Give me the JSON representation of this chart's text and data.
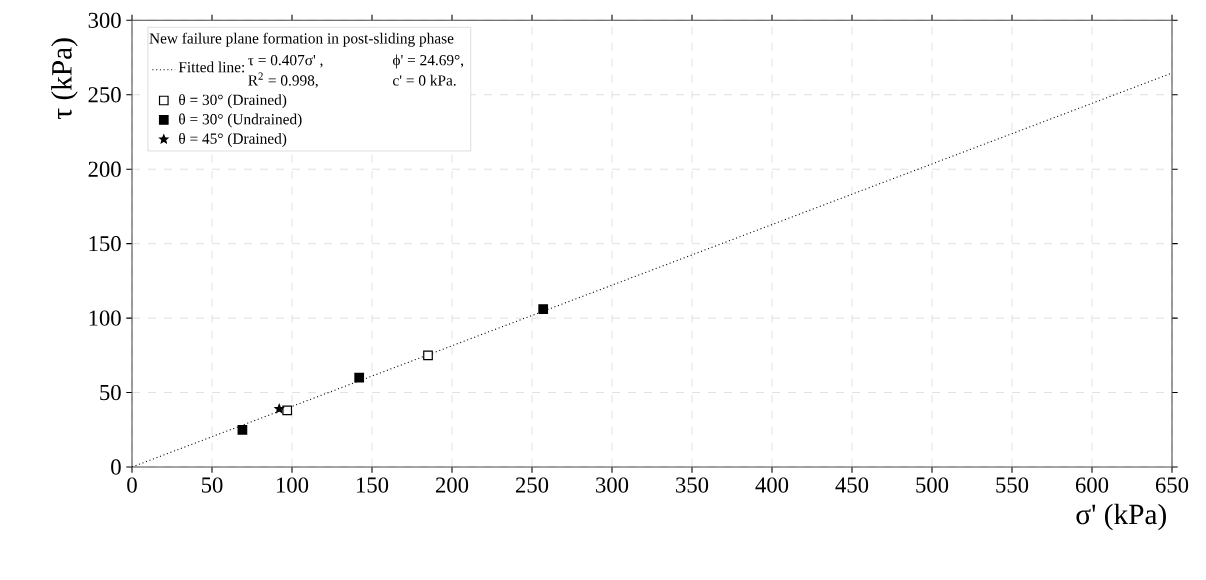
{
  "chart_data": {
    "type": "scatter",
    "legend_title": "New failure plane formation in post-sliding phase",
    "xlabel": "σ' (kPa)",
    "ylabel": "τ (kPa)",
    "annotations": [
      "τ = 0.407σ' ,",
      "ϕ' = 24.69°,",
      "R$^{2}$ = 0.998,",
      "c' = 0 kPa."
    ],
    "series": [
      {
        "name": "Fitted line:",
        "type": "line",
        "line_style": "dotted",
        "marker": "none",
        "color": "#000000",
        "x": [
          0,
          650
        ],
        "values": [
          0,
          264.6
        ]
      },
      {
        "name": "θ = 30° (Drained)",
        "marker": "square",
        "color": "#ffffff",
        "x": [
          97,
          185
        ],
        "values": [
          38,
          75
        ]
      },
      {
        "name": "θ = 30° (Undrained)",
        "marker": "square",
        "color": "#000000",
        "x": [
          69,
          142,
          257
        ],
        "values": [
          25,
          60,
          106
        ]
      },
      {
        "name": "θ = 45° (Drained)",
        "marker": "star",
        "color": "#000000",
        "x": [
          92
        ],
        "values": [
          39
        ]
      }
    ],
    "xlim": [
      0,
      650
    ],
    "ylim": [
      0,
      300
    ],
    "xticks": [
      0,
      50,
      100,
      150,
      200,
      250,
      300,
      350,
      400,
      450,
      500,
      550,
      600,
      650
    ],
    "yticks": [
      0,
      50,
      100,
      150,
      200,
      250,
      300
    ],
    "grid": true,
    "legend": "top left"
  }
}
